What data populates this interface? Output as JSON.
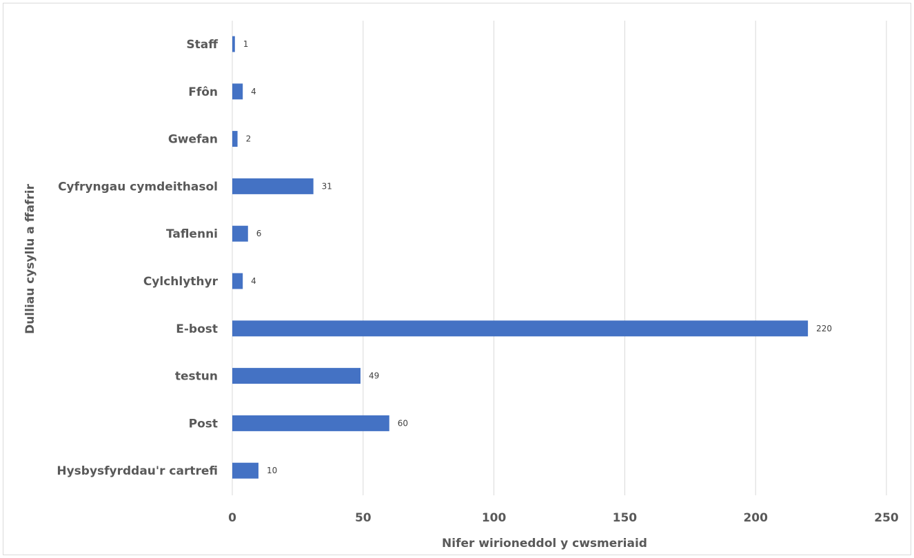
{
  "chart_data": {
    "type": "bar",
    "orientation": "horizontal",
    "categories": [
      "Staff",
      "Ffôn",
      "Gwefan",
      "Cyfryngau cymdeithasol",
      "Taflenni",
      "Cylchlythyr",
      "E-bost",
      "testun",
      "Post",
      "Hysbysfyrddau'r cartrefi"
    ],
    "values": [
      1,
      4,
      2,
      31,
      6,
      4,
      220,
      49,
      60,
      10
    ],
    "data_labels": [
      "1",
      "4",
      "2",
      "31",
      "6",
      "4",
      "220",
      "49",
      "60",
      "10"
    ],
    "xlabel": "Nifer wirioneddol y cwsmeriaid",
    "ylabel": "Dulliau cysyllu a ffafrir",
    "xlim": [
      0,
      250
    ],
    "x_ticks": [
      0,
      50,
      100,
      150,
      200,
      250
    ],
    "x_tick_labels": [
      "0",
      "50",
      "100",
      "150",
      "200",
      "250"
    ],
    "grid": "vertical",
    "legend": "none",
    "bar_color": "#4472c4"
  }
}
